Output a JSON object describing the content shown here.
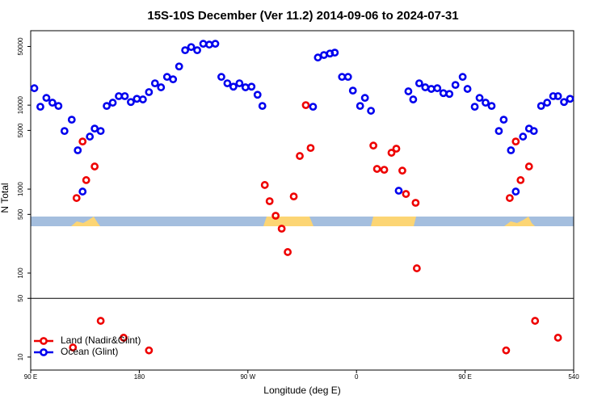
{
  "chart_data": {
    "type": "scatter",
    "title": "15S-10S December (Ver 11.2)   2014-09-06 to 2024-07-31",
    "x_label": "Longitude (deg E)",
    "y_label": "N Total",
    "xlim": [
      90,
      540
    ],
    "xticks": [
      {
        "value": 90,
        "label": "90 E"
      },
      180,
      {
        "value": 270,
        "label": "90 W"
      },
      {
        "value": 360,
        "label": "0"
      },
      {
        "value": 450,
        "label": "90 E"
      },
      540
    ],
    "ylim": [
      7,
      77000
    ],
    "log_y": true,
    "yticks": [
      10,
      50,
      100,
      500,
      1000,
      5000,
      10000,
      50000
    ],
    "hlines": [
      50
    ],
    "legend": "bottom-left",
    "series": [
      {
        "name": "Land (Nadir&Glint)",
        "color": "#ee0000",
        "x": [
          128,
          133,
          136,
          143,
          148,
          125,
          167,
          188,
          284,
          288,
          293,
          298,
          303,
          308,
          313,
          318,
          322,
          374,
          377,
          383,
          389,
          393,
          398,
          401,
          409,
          410,
          484,
          487,
          492,
          496,
          503,
          508,
          527
        ],
        "values": [
          783,
          3690,
          1280,
          1860,
          27,
          13,
          17,
          12,
          1120,
          718,
          482,
          338,
          178,
          818,
          2480,
          10000,
          3090,
          3300,
          1740,
          1700,
          2710,
          3030,
          1660,
          875,
          687,
          114,
          12,
          783,
          3690,
          1280,
          1860,
          27,
          17
        ]
      },
      {
        "name": "Ocean (Glint)",
        "color": "#0000ee",
        "x": [
          93,
          98,
          103,
          108,
          113,
          118,
          124,
          129,
          133,
          139,
          143,
          148,
          153,
          158,
          163,
          168,
          173,
          178,
          183,
          188,
          193,
          198,
          203,
          208,
          213,
          218,
          223,
          228,
          233,
          238,
          243,
          248,
          253,
          258,
          263,
          268,
          273,
          278,
          282,
          324,
          328,
          333,
          338,
          342,
          348,
          353,
          357,
          363,
          367,
          372,
          395,
          403,
          407,
          412,
          417,
          422,
          427,
          432,
          437,
          442,
          448,
          452,
          458,
          462,
          467,
          472,
          478,
          482,
          488,
          492,
          498,
          503,
          507,
          513,
          518,
          523,
          527,
          532,
          537
        ],
        "values": [
          15900,
          9570,
          12200,
          10700,
          9780,
          4920,
          6710,
          2900,
          935,
          4220,
          5260,
          4920,
          9780,
          10700,
          12800,
          12800,
          10900,
          11900,
          11700,
          14300,
          18200,
          16300,
          21700,
          20300,
          28900,
          45100,
          49200,
          45100,
          53800,
          52600,
          53800,
          21700,
          18200,
          16600,
          18200,
          16300,
          16600,
          13300,
          9780,
          9570,
          36900,
          39500,
          41200,
          42200,
          21700,
          21700,
          14900,
          9780,
          12200,
          8570,
          957,
          14600,
          11700,
          18200,
          16300,
          15600,
          15900,
          13900,
          13600,
          17400,
          21700,
          15600,
          9570,
          12200,
          10700,
          9780,
          4920,
          6710,
          2900,
          935,
          4220,
          5260,
          4920,
          9780,
          10700,
          12800,
          12800,
          10900,
          11900
        ]
      }
    ]
  }
}
